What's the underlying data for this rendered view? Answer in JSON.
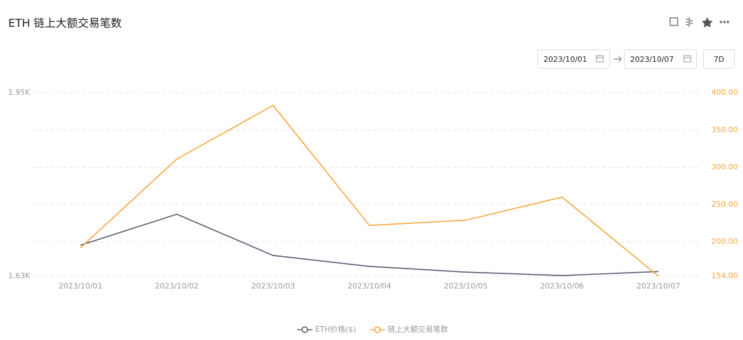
{
  "header": {
    "title": "ETH 链上大额交易笔数"
  },
  "controls": {
    "start_date": "2023/10/01",
    "end_date": "2023/10/07",
    "range": "7D"
  },
  "chart_data": {
    "type": "line",
    "categories": [
      "2023/10/01",
      "2023/10/02",
      "2023/10/03",
      "2023/10/04",
      "2023/10/05",
      "2023/10/06",
      "2023/10/07"
    ],
    "series": [
      {
        "name": "ETH价格($)",
        "color": "#5c5c72",
        "values": [
          1684,
          1738,
          1666,
          1647,
          1637,
          1631,
          1638
        ]
      },
      {
        "name": "链上大额交易笔数",
        "color": "#f5a53a",
        "axis": "y2",
        "values": [
          192,
          311,
          383,
          222,
          229,
          260,
          154
        ]
      }
    ],
    "ylim": [
      1630,
      1950
    ],
    "yticks": [
      {
        "value": 1630,
        "label": "1.63K"
      },
      {
        "value": 1950,
        "label": "1.95K"
      }
    ],
    "y2lim": [
      154,
      400
    ],
    "y2ticks": [
      {
        "value": 154,
        "label": "154.00"
      },
      {
        "value": 200,
        "label": "200.00"
      },
      {
        "value": 250,
        "label": "250.00"
      },
      {
        "value": 300,
        "label": "300.00"
      },
      {
        "value": 350,
        "label": "350.00"
      },
      {
        "value": 400,
        "label": "400.00"
      }
    ],
    "grid": true
  }
}
